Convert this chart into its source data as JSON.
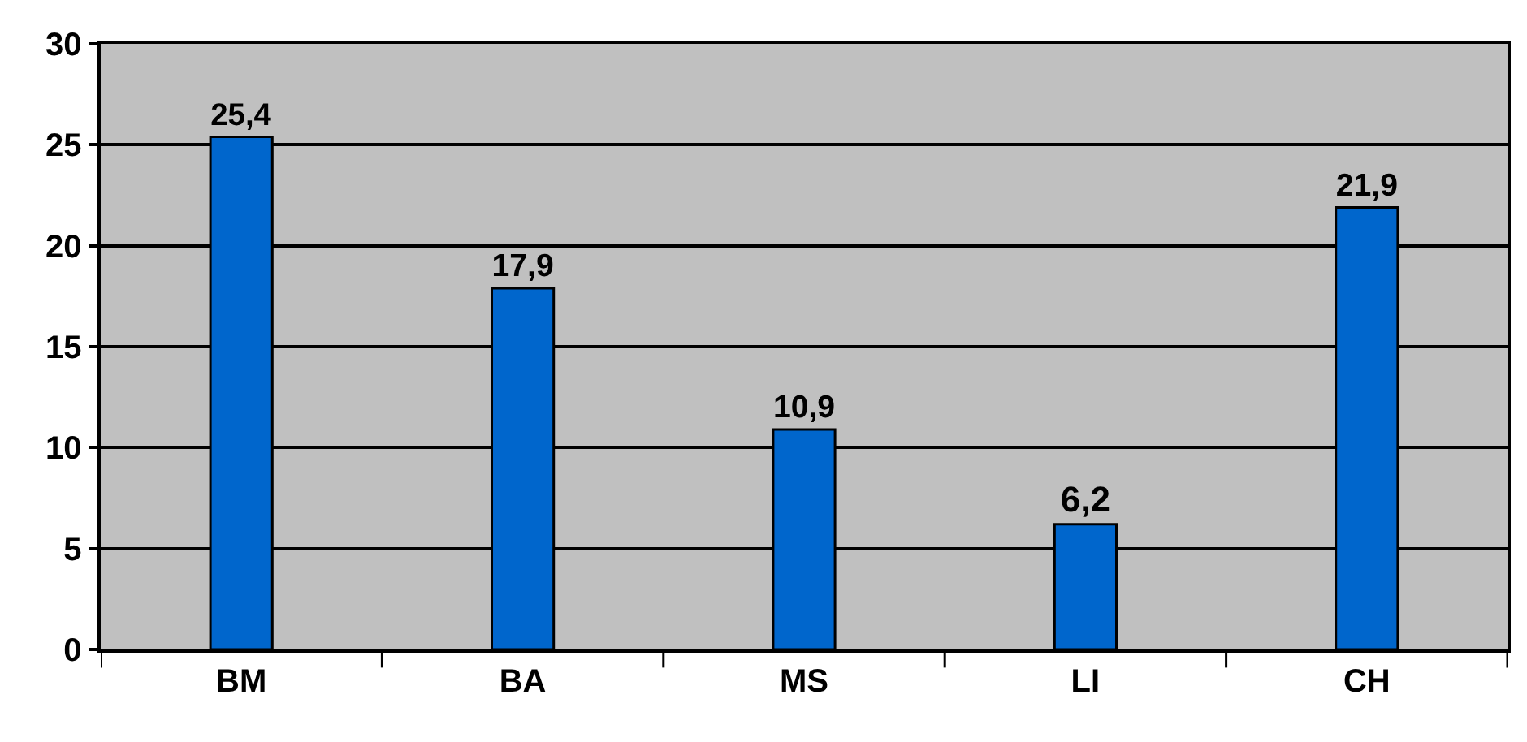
{
  "chart_data": {
    "type": "bar",
    "categories": [
      "BM",
      "BA",
      "MS",
      "LI",
      "CH"
    ],
    "values": [
      25.4,
      17.9,
      10.9,
      6.2,
      21.9
    ],
    "value_labels": [
      "25,4",
      "17,9",
      "10,9",
      "6,2",
      "21,9"
    ],
    "color": "#0066cc",
    "ylim": [
      0,
      30
    ],
    "yticks": [
      0,
      5,
      10,
      15,
      20,
      25,
      30
    ],
    "grid": "y"
  }
}
